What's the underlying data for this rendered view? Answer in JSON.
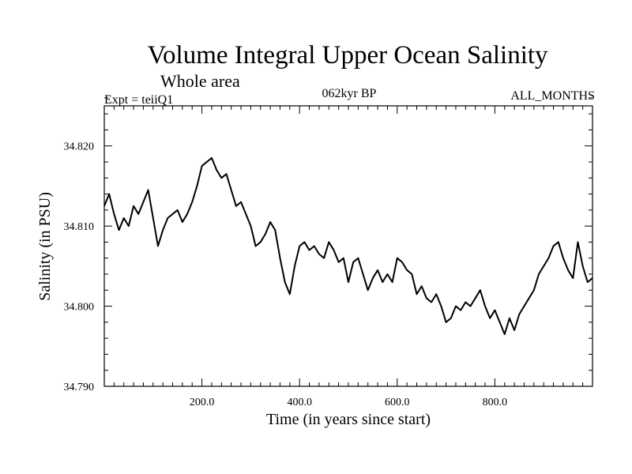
{
  "chart_data": {
    "type": "line",
    "title": "Volume Integral Upper Ocean Salinity",
    "subtitle": "Whole area",
    "experiment_label": "Expt = teiiQ1",
    "period_label": "062kyr BP",
    "months_label": "ALL_MONTHS",
    "xlabel": "Time (in years since start)",
    "ylabel": "Salinity (in PSU)",
    "xlim": [
      0,
      1000
    ],
    "ylim": [
      34.79,
      34.825
    ],
    "x_ticks": [
      {
        "value": 200,
        "label": "200.0"
      },
      {
        "value": 400,
        "label": "400.0"
      },
      {
        "value": 600,
        "label": "600.0"
      },
      {
        "value": 800,
        "label": "800.0"
      }
    ],
    "y_ticks": [
      {
        "value": 34.79,
        "label": "34.790"
      },
      {
        "value": 34.8,
        "label": "34.800"
      },
      {
        "value": 34.81,
        "label": "34.810"
      },
      {
        "value": 34.82,
        "label": "34.820"
      }
    ],
    "grid": false,
    "line_color": "#000000",
    "series": [
      {
        "x": [
          0,
          10,
          20,
          30,
          40,
          50,
          60,
          70,
          80,
          90,
          100,
          110,
          120,
          130,
          140,
          150,
          160,
          170,
          180,
          190,
          200,
          210,
          220,
          230,
          240,
          250,
          260,
          270,
          280,
          290,
          300,
          310,
          320,
          330,
          340,
          350,
          360,
          370,
          380,
          390,
          400,
          410,
          420,
          430,
          440,
          450,
          460,
          470,
          480,
          490,
          500,
          510,
          520,
          530,
          540,
          550,
          560,
          570,
          580,
          590,
          600,
          610,
          620,
          630,
          640,
          650,
          660,
          670,
          680,
          690,
          700,
          710,
          720,
          730,
          740,
          750,
          760,
          770,
          780,
          790,
          800,
          810,
          820,
          830,
          840,
          850,
          860,
          870,
          880,
          890,
          900,
          910,
          920,
          930,
          940,
          950,
          960,
          970,
          980,
          990,
          1000
        ],
        "values": [
          34.8125,
          34.814,
          34.8115,
          34.8095,
          34.811,
          34.81,
          34.8125,
          34.8115,
          34.813,
          34.8145,
          34.811,
          34.8075,
          34.8095,
          34.811,
          34.8115,
          34.812,
          34.8105,
          34.8115,
          34.813,
          34.815,
          34.8175,
          34.818,
          34.8185,
          34.817,
          34.816,
          34.8165,
          34.8145,
          34.8125,
          34.813,
          34.8115,
          34.81,
          34.8075,
          34.808,
          34.809,
          34.8105,
          34.8095,
          34.806,
          34.803,
          34.8015,
          34.805,
          34.8075,
          34.808,
          34.807,
          34.8075,
          34.8065,
          34.806,
          34.808,
          34.807,
          34.8055,
          34.806,
          34.803,
          34.8055,
          34.806,
          34.804,
          34.802,
          34.8035,
          34.8045,
          34.803,
          34.804,
          34.803,
          34.806,
          34.8055,
          34.8045,
          34.804,
          34.8015,
          34.8025,
          34.801,
          34.8005,
          34.8015,
          34.8,
          34.798,
          34.7985,
          34.8,
          34.7995,
          34.8005,
          34.8,
          34.801,
          34.802,
          34.8,
          34.7985,
          34.7995,
          34.798,
          34.7965,
          34.7985,
          34.797,
          34.799,
          34.8,
          34.801,
          34.802,
          34.804,
          34.805,
          34.806,
          34.8075,
          34.808,
          34.806,
          34.8045,
          34.8035,
          34.808,
          34.805,
          34.803,
          34.8035
        ]
      }
    ]
  }
}
